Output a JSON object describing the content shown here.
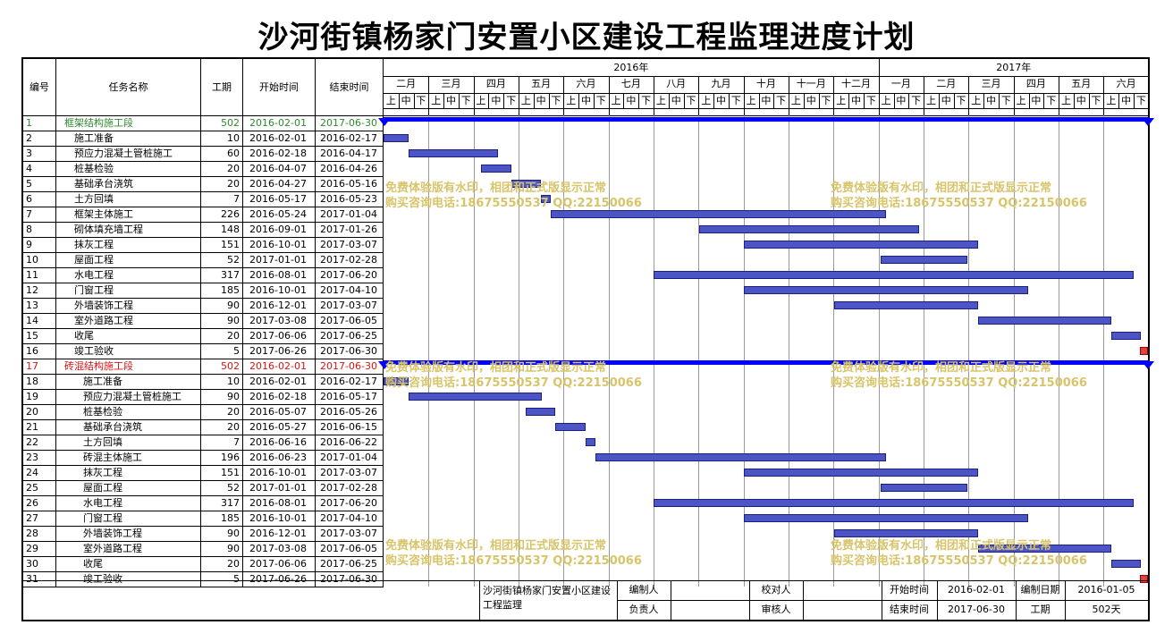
{
  "title": "沙河街镇杨家门安置小区建设工程监理进度计划",
  "columns": {
    "no": "编号",
    "name": "任务名称",
    "days": "工期",
    "start": "开始时间",
    "end": "结束时间"
  },
  "years": [
    {
      "label": "2016年",
      "from": 0,
      "to": 11
    },
    {
      "label": "2017年",
      "from": 11,
      "to": 17
    }
  ],
  "months": [
    "二月",
    "三月",
    "四月",
    "五月",
    "六月",
    "七月",
    "八月",
    "九月",
    "十月",
    "十一月",
    "十二月",
    "一月",
    "二月",
    "三月",
    "四月",
    "五月",
    "六月"
  ],
  "dekads": [
    "上",
    "中",
    "下"
  ],
  "timeline": {
    "start": "2016-02-01",
    "end": "2017-06-30"
  },
  "tasks": [
    {
      "no": "1",
      "name": "框架结构施工段",
      "days": "502",
      "start": "2016-02-01",
      "end": "2017-06-30",
      "type": "summary",
      "color": "#2e8b2e",
      "indent": 0
    },
    {
      "no": "2",
      "name": "施工准备",
      "days": "10",
      "start": "2016-02-01",
      "end": "2016-02-17",
      "type": "task",
      "indent": 1
    },
    {
      "no": "3",
      "name": "预应力混凝土管桩施工",
      "days": "60",
      "start": "2016-02-18",
      "end": "2016-04-17",
      "type": "task",
      "indent": 1
    },
    {
      "no": "4",
      "name": "桩基检验",
      "days": "20",
      "start": "2016-04-07",
      "end": "2016-04-26",
      "type": "task",
      "indent": 1
    },
    {
      "no": "5",
      "name": "基础承台浇筑",
      "days": "20",
      "start": "2016-04-27",
      "end": "2016-05-16",
      "type": "task",
      "indent": 1
    },
    {
      "no": "6",
      "name": "土方回填",
      "days": "7",
      "start": "2016-05-17",
      "end": "2016-05-23",
      "type": "task",
      "indent": 1
    },
    {
      "no": "7",
      "name": "框架主体施工",
      "days": "226",
      "start": "2016-05-24",
      "end": "2017-01-04",
      "type": "task",
      "indent": 1
    },
    {
      "no": "8",
      "name": "砌体填充墙工程",
      "days": "148",
      "start": "2016-09-01",
      "end": "2017-01-26",
      "type": "task",
      "indent": 1
    },
    {
      "no": "9",
      "name": "抹灰工程",
      "days": "151",
      "start": "2016-10-01",
      "end": "2017-03-07",
      "type": "task",
      "indent": 1
    },
    {
      "no": "10",
      "name": "屋面工程",
      "days": "52",
      "start": "2017-01-01",
      "end": "2017-02-28",
      "type": "task",
      "indent": 1
    },
    {
      "no": "11",
      "name": "水电工程",
      "days": "317",
      "start": "2016-08-01",
      "end": "2017-06-20",
      "type": "task",
      "indent": 1
    },
    {
      "no": "12",
      "name": "门窗工程",
      "days": "185",
      "start": "2016-10-01",
      "end": "2017-04-10",
      "type": "task",
      "indent": 1
    },
    {
      "no": "13",
      "name": "外墙装饰工程",
      "days": "90",
      "start": "2016-12-01",
      "end": "2017-03-07",
      "type": "task",
      "indent": 1
    },
    {
      "no": "14",
      "name": "室外道路工程",
      "days": "90",
      "start": "2017-03-08",
      "end": "2017-06-05",
      "type": "task",
      "indent": 1
    },
    {
      "no": "15",
      "name": "收尾",
      "days": "20",
      "start": "2017-06-06",
      "end": "2017-06-25",
      "type": "task",
      "indent": 1
    },
    {
      "no": "16",
      "name": "竣工验收",
      "days": "5",
      "start": "2017-06-26",
      "end": "2017-06-30",
      "type": "milestone",
      "indent": 1
    },
    {
      "no": "17",
      "name": "砖混结构施工段",
      "days": "502",
      "start": "2016-02-01",
      "end": "2017-06-30",
      "type": "summary",
      "color": "#dd1111",
      "indent": 0
    },
    {
      "no": "18",
      "name": "施工准备",
      "days": "10",
      "start": "2016-02-01",
      "end": "2016-02-17",
      "type": "task",
      "indent": 2
    },
    {
      "no": "19",
      "name": "预应力混凝土管桩施工",
      "days": "90",
      "start": "2016-02-18",
      "end": "2016-05-17",
      "type": "task",
      "indent": 2
    },
    {
      "no": "20",
      "name": "桩基检验",
      "days": "20",
      "start": "2016-05-07",
      "end": "2016-05-26",
      "type": "task",
      "indent": 2
    },
    {
      "no": "21",
      "name": "基础承台浇筑",
      "days": "20",
      "start": "2016-05-27",
      "end": "2016-06-15",
      "type": "task",
      "indent": 2
    },
    {
      "no": "22",
      "name": "土方回填",
      "days": "7",
      "start": "2016-06-16",
      "end": "2016-06-22",
      "type": "task",
      "indent": 2
    },
    {
      "no": "23",
      "name": "砖混主体施工",
      "days": "196",
      "start": "2016-06-23",
      "end": "2017-01-04",
      "type": "task",
      "indent": 2
    },
    {
      "no": "24",
      "name": "抹灰工程",
      "days": "151",
      "start": "2016-10-01",
      "end": "2017-03-07",
      "type": "task",
      "indent": 2
    },
    {
      "no": "25",
      "name": "屋面工程",
      "days": "52",
      "start": "2017-01-01",
      "end": "2017-02-28",
      "type": "task",
      "indent": 2
    },
    {
      "no": "26",
      "name": "水电工程",
      "days": "317",
      "start": "2016-08-01",
      "end": "2017-06-20",
      "type": "task",
      "indent": 2
    },
    {
      "no": "27",
      "name": "门窗工程",
      "days": "185",
      "start": "2016-10-01",
      "end": "2017-04-10",
      "type": "task",
      "indent": 2
    },
    {
      "no": "28",
      "name": "外墙装饰工程",
      "days": "90",
      "start": "2016-12-01",
      "end": "2017-03-07",
      "type": "task",
      "indent": 2
    },
    {
      "no": "29",
      "name": "室外道路工程",
      "days": "90",
      "start": "2017-03-08",
      "end": "2017-06-05",
      "type": "task",
      "indent": 2
    },
    {
      "no": "30",
      "name": "收尾",
      "days": "20",
      "start": "2017-06-06",
      "end": "2017-06-25",
      "type": "task",
      "indent": 2
    },
    {
      "no": "31",
      "name": "竣工验收",
      "days": "5",
      "start": "2017-06-26",
      "end": "2017-06-30",
      "type": "milestone",
      "indent": 2
    }
  ],
  "watermark": {
    "line1": "免费体验版有水印，相团和正式版显示正常",
    "line2": "购买咨询电话:18675550537 QQ:22150066"
  },
  "footer": {
    "project": "沙河街镇杨家门安置小区建设工程监理",
    "compiler_label": "编制人",
    "compiler": "",
    "checker_label": "校对人",
    "checker": "",
    "owner_label": "负责人",
    "owner": "",
    "reviewer_label": "审核人",
    "reviewer": "",
    "start_label": "开始时间",
    "start": "2016-02-01",
    "end_label": "结束时间",
    "end": "2017-06-30",
    "date_label": "编制日期",
    "date": "2016-01-05",
    "duration_label": "工期",
    "duration": "502天"
  },
  "colors": {
    "task_bar": "#4d55c4",
    "summary_bar": "#0000ff",
    "milestone": "#e04040",
    "watermark": "#d8c46a"
  }
}
